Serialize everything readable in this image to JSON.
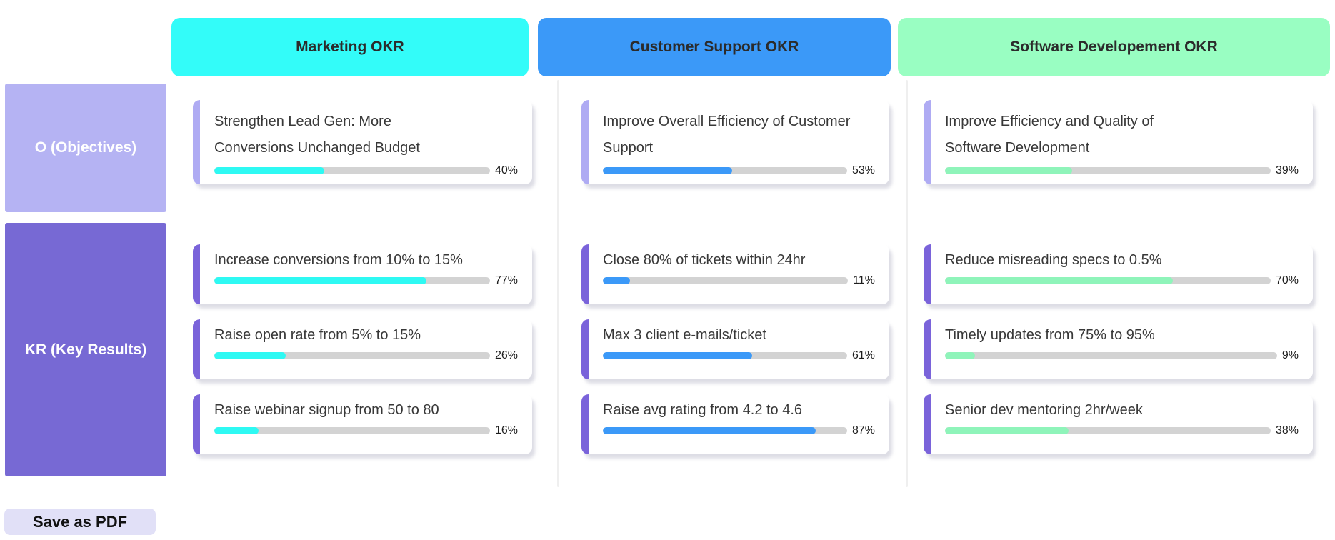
{
  "board": {
    "row_labels": {
      "objectives": "O (Objectives)",
      "key_results": "KR (Key Results)"
    },
    "columns": [
      {
        "header": "Marketing OKR",
        "header_color": "#33FCF9",
        "bar_color": "#2EF9F3",
        "objective": {
          "title": "Strengthen Lead Gen: More Conversions Unchanged Budget",
          "title_lines": [
            "Strengthen Lead Gen: More",
            "Conversions Unchanged Budget"
          ],
          "percent": 40,
          "percent_label": "40%"
        },
        "key_results": [
          {
            "title": "Increase conversions from 10% to 15%",
            "percent": 77,
            "percent_label": "77%"
          },
          {
            "title": "Raise open rate from 5% to 15%",
            "percent": 26,
            "percent_label": "26%"
          },
          {
            "title": "Raise webinar signup from 50 to 80",
            "percent": 16,
            "percent_label": "16%"
          }
        ]
      },
      {
        "header": "Customer Support OKR",
        "header_color": "#3B99F8",
        "bar_color": "#3B99F8",
        "objective": {
          "title": "Improve Overall Efficiency of Customer Support",
          "title_lines": [
            "Improve Overall Efficiency of Customer",
            "Support"
          ],
          "percent": 53,
          "percent_label": "53%"
        },
        "key_results": [
          {
            "title": "Close 80% of tickets within 24hr",
            "percent": 11,
            "percent_label": "11%"
          },
          {
            "title": "Max 3 client e-mails/ticket",
            "percent": 61,
            "percent_label": "61%"
          },
          {
            "title": "Raise avg rating from 4.2 to 4.6",
            "percent": 87,
            "percent_label": "87%"
          }
        ]
      },
      {
        "header": "Software Developement OKR",
        "header_color": "#99FEC2",
        "bar_color": "#8FF4BA",
        "objective": {
          "title": "Improve Efficiency and Quality of Software Development",
          "title_lines": [
            "Improve Efficiency and Quality of",
            "Software Development"
          ],
          "percent": 39,
          "percent_label": "39%"
        },
        "key_results": [
          {
            "title": "Reduce misreading specs to 0.5%",
            "percent": 70,
            "percent_label": "70%"
          },
          {
            "title": "Timely updates from 75% to 95%",
            "percent": 9,
            "percent_label": "9%"
          },
          {
            "title": "Senior dev mentoring 2hr/week",
            "percent": 38,
            "percent_label": "38%"
          }
        ]
      }
    ],
    "ui_colors": {
      "objectives_label_bg": "#B5B3F3",
      "key_results_label_bg": "#7769D4",
      "objective_card_border": "#AFABF3",
      "kr_card_border": "#7A63DA",
      "progress_track": "#D3D3D3"
    }
  },
  "footer": {
    "save_button_label": "Save as PDF",
    "save_button_bg": "#E1E0F7"
  }
}
